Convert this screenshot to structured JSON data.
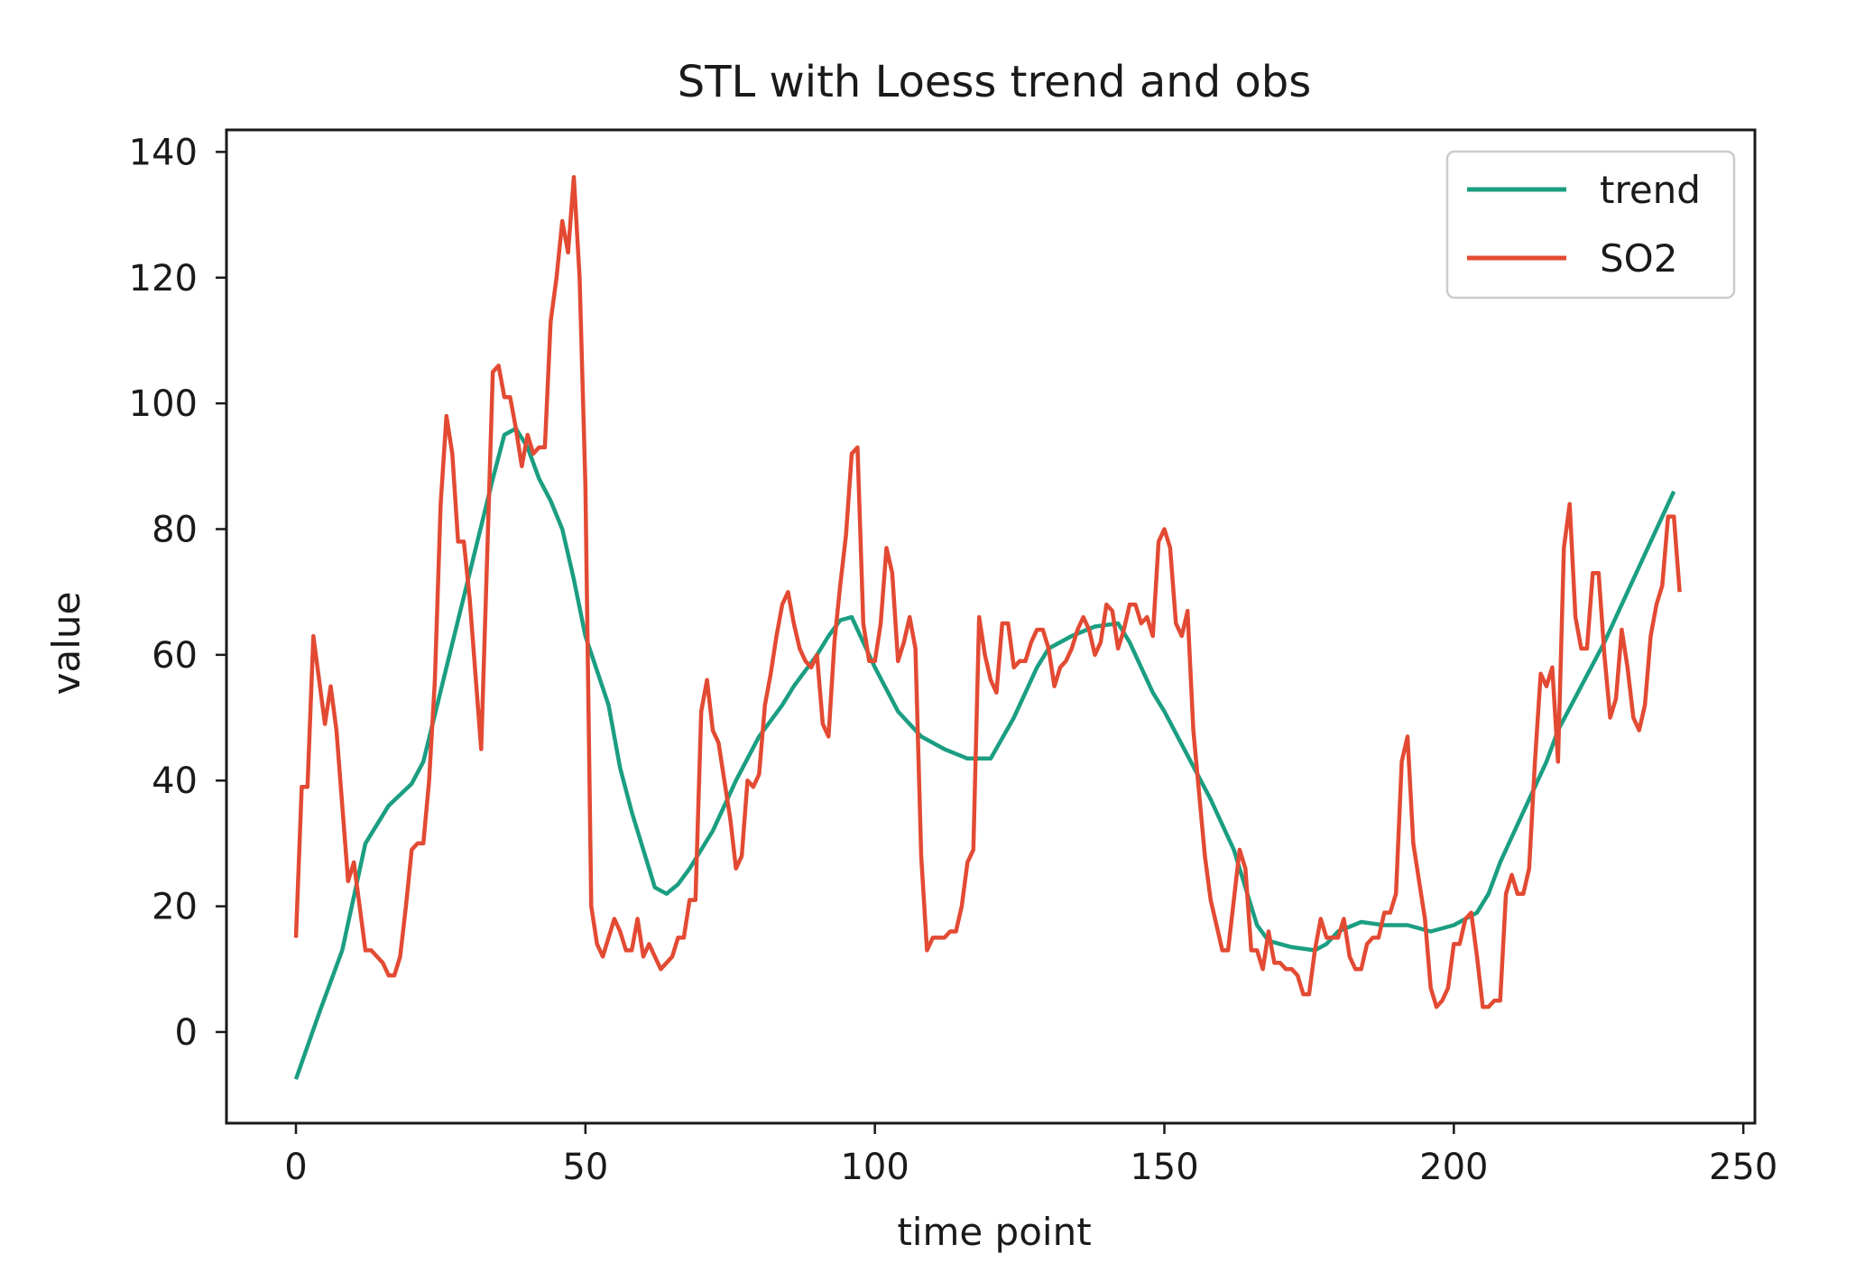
{
  "chart_data": {
    "type": "line",
    "title": "STL with Loess trend and obs",
    "xlabel": "time point",
    "ylabel": "value",
    "xlim": [
      -12,
      252
    ],
    "ylim": [
      -14.5,
      143.5
    ],
    "x_ticks": [
      0,
      50,
      100,
      150,
      200,
      250
    ],
    "y_ticks": [
      0,
      20,
      40,
      60,
      80,
      100,
      120,
      140
    ],
    "grid": false,
    "legend_position": "top-right",
    "series": [
      {
        "name": "trend",
        "color": "#1b9e82",
        "points": [
          [
            0,
            -7.5
          ],
          [
            4,
            3
          ],
          [
            8,
            13
          ],
          [
            12,
            30
          ],
          [
            16,
            36
          ],
          [
            20,
            39.5
          ],
          [
            22,
            43
          ],
          [
            26,
            58
          ],
          [
            30,
            73
          ],
          [
            34,
            88
          ],
          [
            36,
            95
          ],
          [
            38,
            96
          ],
          [
            40,
            93
          ],
          [
            42,
            88
          ],
          [
            44,
            84.5
          ],
          [
            46,
            80
          ],
          [
            48,
            72
          ],
          [
            50,
            63
          ],
          [
            54,
            52
          ],
          [
            56,
            42
          ],
          [
            58,
            35
          ],
          [
            60,
            29
          ],
          [
            62,
            23
          ],
          [
            64,
            22
          ],
          [
            66,
            23.5
          ],
          [
            68,
            26
          ],
          [
            72,
            32
          ],
          [
            76,
            40
          ],
          [
            80,
            47
          ],
          [
            84,
            52
          ],
          [
            86,
            55
          ],
          [
            90,
            60
          ],
          [
            92,
            63
          ],
          [
            94,
            65.5
          ],
          [
            96,
            66
          ],
          [
            98,
            62
          ],
          [
            100,
            58
          ],
          [
            104,
            51
          ],
          [
            108,
            47
          ],
          [
            112,
            45
          ],
          [
            116,
            43.5
          ],
          [
            120,
            43.5
          ],
          [
            124,
            50
          ],
          [
            128,
            58
          ],
          [
            130,
            61
          ],
          [
            134,
            63
          ],
          [
            138,
            64.5
          ],
          [
            142,
            65
          ],
          [
            144,
            62
          ],
          [
            146,
            58
          ],
          [
            148,
            54
          ],
          [
            150,
            51
          ],
          [
            154,
            44
          ],
          [
            158,
            37
          ],
          [
            162,
            29
          ],
          [
            164,
            23
          ],
          [
            166,
            17
          ],
          [
            168,
            14.5
          ],
          [
            172,
            13.5
          ],
          [
            176,
            13
          ],
          [
            178,
            14
          ],
          [
            180,
            16
          ],
          [
            184,
            17.5
          ],
          [
            188,
            17
          ],
          [
            192,
            17
          ],
          [
            196,
            16
          ],
          [
            200,
            17
          ],
          [
            204,
            19
          ],
          [
            206,
            22
          ],
          [
            208,
            27
          ],
          [
            212,
            35
          ],
          [
            216,
            43
          ],
          [
            218,
            48
          ],
          [
            222,
            55
          ],
          [
            226,
            62
          ],
          [
            230,
            70
          ],
          [
            234,
            78
          ],
          [
            238,
            86
          ]
        ]
      },
      {
        "name": "SO2",
        "color": "#e34a33",
        "points": [
          [
            0,
            15
          ],
          [
            1,
            39
          ],
          [
            2,
            39
          ],
          [
            3,
            63
          ],
          [
            5,
            49
          ],
          [
            6,
            55
          ],
          [
            7,
            48
          ],
          [
            9,
            24
          ],
          [
            10,
            27
          ],
          [
            12,
            13
          ],
          [
            13,
            13
          ],
          [
            15,
            11
          ],
          [
            16,
            9
          ],
          [
            17,
            9
          ],
          [
            18,
            12
          ],
          [
            19,
            20
          ],
          [
            20,
            29
          ],
          [
            21,
            30
          ],
          [
            22,
            30
          ],
          [
            23,
            40
          ],
          [
            24,
            56
          ],
          [
            25,
            84
          ],
          [
            26,
            98
          ],
          [
            27,
            92
          ],
          [
            28,
            78
          ],
          [
            29,
            78
          ],
          [
            30,
            69
          ],
          [
            32,
            45
          ],
          [
            33,
            75
          ],
          [
            34,
            105
          ],
          [
            35,
            106
          ],
          [
            36,
            101
          ],
          [
            37,
            101
          ],
          [
            38,
            96
          ],
          [
            39,
            90
          ],
          [
            40,
            95
          ],
          [
            41,
            92
          ],
          [
            42,
            93
          ],
          [
            43,
            93
          ],
          [
            44,
            113
          ],
          [
            45,
            120
          ],
          [
            46,
            129
          ],
          [
            47,
            124
          ],
          [
            48,
            136
          ],
          [
            49,
            120
          ],
          [
            50,
            87
          ],
          [
            51,
            20
          ],
          [
            52,
            14
          ],
          [
            53,
            12
          ],
          [
            55,
            18
          ],
          [
            56,
            16
          ],
          [
            57,
            13
          ],
          [
            58,
            13
          ],
          [
            59,
            18
          ],
          [
            60,
            12
          ],
          [
            61,
            14
          ],
          [
            62,
            12
          ],
          [
            63,
            10
          ],
          [
            64,
            11
          ],
          [
            65,
            12
          ],
          [
            66,
            15
          ],
          [
            67,
            15
          ],
          [
            68,
            21
          ],
          [
            69,
            21
          ],
          [
            70,
            51
          ],
          [
            71,
            56
          ],
          [
            72,
            48
          ],
          [
            73,
            46
          ],
          [
            74,
            40
          ],
          [
            75,
            34
          ],
          [
            76,
            26
          ],
          [
            77,
            28
          ],
          [
            78,
            40
          ],
          [
            79,
            39
          ],
          [
            80,
            41
          ],
          [
            81,
            52
          ],
          [
            82,
            57
          ],
          [
            83,
            63
          ],
          [
            84,
            68
          ],
          [
            85,
            70
          ],
          [
            86,
            65
          ],
          [
            87,
            61
          ],
          [
            88,
            59
          ],
          [
            89,
            58
          ],
          [
            90,
            60
          ],
          [
            91,
            49
          ],
          [
            92,
            47
          ],
          [
            93,
            62
          ],
          [
            94,
            71
          ],
          [
            95,
            79
          ],
          [
            96,
            92
          ],
          [
            97,
            93
          ],
          [
            98,
            65
          ],
          [
            99,
            59
          ],
          [
            100,
            59
          ],
          [
            101,
            65
          ],
          [
            102,
            77
          ],
          [
            103,
            73
          ],
          [
            104,
            59
          ],
          [
            105,
            62
          ],
          [
            106,
            66
          ],
          [
            107,
            61
          ],
          [
            108,
            28
          ],
          [
            109,
            13
          ],
          [
            110,
            15
          ],
          [
            111,
            15
          ],
          [
            112,
            15
          ],
          [
            113,
            16
          ],
          [
            114,
            16
          ],
          [
            115,
            20
          ],
          [
            116,
            27
          ],
          [
            117,
            29
          ],
          [
            118,
            66
          ],
          [
            119,
            60
          ],
          [
            120,
            56
          ],
          [
            121,
            54
          ],
          [
            122,
            65
          ],
          [
            123,
            65
          ],
          [
            124,
            58
          ],
          [
            125,
            59
          ],
          [
            126,
            59
          ],
          [
            127,
            62
          ],
          [
            128,
            64
          ],
          [
            129,
            64
          ],
          [
            130,
            61
          ],
          [
            131,
            55
          ],
          [
            132,
            58
          ],
          [
            133,
            59
          ],
          [
            134,
            61
          ],
          [
            135,
            64
          ],
          [
            136,
            66
          ],
          [
            137,
            64
          ],
          [
            138,
            60
          ],
          [
            139,
            62
          ],
          [
            140,
            68
          ],
          [
            141,
            67
          ],
          [
            142,
            61
          ],
          [
            143,
            64
          ],
          [
            144,
            68
          ],
          [
            145,
            68
          ],
          [
            146,
            65
          ],
          [
            147,
            66
          ],
          [
            148,
            63
          ],
          [
            149,
            78
          ],
          [
            150,
            80
          ],
          [
            151,
            77
          ],
          [
            152,
            65
          ],
          [
            153,
            63
          ],
          [
            154,
            67
          ],
          [
            155,
            48
          ],
          [
            156,
            38
          ],
          [
            157,
            28
          ],
          [
            158,
            21
          ],
          [
            159,
            17
          ],
          [
            160,
            13
          ],
          [
            161,
            13
          ],
          [
            162,
            21
          ],
          [
            163,
            29
          ],
          [
            164,
            26
          ],
          [
            165,
            13
          ],
          [
            166,
            13
          ],
          [
            167,
            10
          ],
          [
            168,
            16
          ],
          [
            169,
            11
          ],
          [
            170,
            11
          ],
          [
            171,
            10
          ],
          [
            172,
            10
          ],
          [
            173,
            9
          ],
          [
            174,
            6
          ],
          [
            175,
            6
          ],
          [
            176,
            13
          ],
          [
            177,
            18
          ],
          [
            178,
            15
          ],
          [
            179,
            15
          ],
          [
            180,
            15
          ],
          [
            181,
            18
          ],
          [
            182,
            12
          ],
          [
            183,
            10
          ],
          [
            184,
            10
          ],
          [
            185,
            14
          ],
          [
            186,
            15
          ],
          [
            187,
            15
          ],
          [
            188,
            19
          ],
          [
            189,
            19
          ],
          [
            190,
            22
          ],
          [
            191,
            43
          ],
          [
            192,
            47
          ],
          [
            193,
            30
          ],
          [
            194,
            24
          ],
          [
            195,
            18
          ],
          [
            196,
            7
          ],
          [
            197,
            4
          ],
          [
            198,
            5
          ],
          [
            199,
            7
          ],
          [
            200,
            14
          ],
          [
            201,
            14
          ],
          [
            202,
            18
          ],
          [
            203,
            19
          ],
          [
            204,
            12
          ],
          [
            205,
            4
          ],
          [
            206,
            4
          ],
          [
            207,
            5
          ],
          [
            208,
            5
          ],
          [
            209,
            22
          ],
          [
            210,
            25
          ],
          [
            211,
            22
          ],
          [
            212,
            22
          ],
          [
            213,
            26
          ],
          [
            214,
            43
          ],
          [
            215,
            57
          ],
          [
            216,
            55
          ],
          [
            217,
            58
          ],
          [
            218,
            43
          ],
          [
            219,
            77
          ],
          [
            220,
            84
          ],
          [
            221,
            66
          ],
          [
            222,
            61
          ],
          [
            223,
            61
          ],
          [
            224,
            73
          ],
          [
            225,
            73
          ],
          [
            226,
            60
          ],
          [
            227,
            50
          ],
          [
            228,
            53
          ],
          [
            229,
            64
          ],
          [
            230,
            58
          ],
          [
            231,
            50
          ],
          [
            232,
            48
          ],
          [
            233,
            52
          ],
          [
            234,
            63
          ],
          [
            235,
            68
          ],
          [
            236,
            71
          ],
          [
            237,
            82
          ],
          [
            238,
            82
          ],
          [
            239,
            70
          ]
        ]
      }
    ]
  }
}
